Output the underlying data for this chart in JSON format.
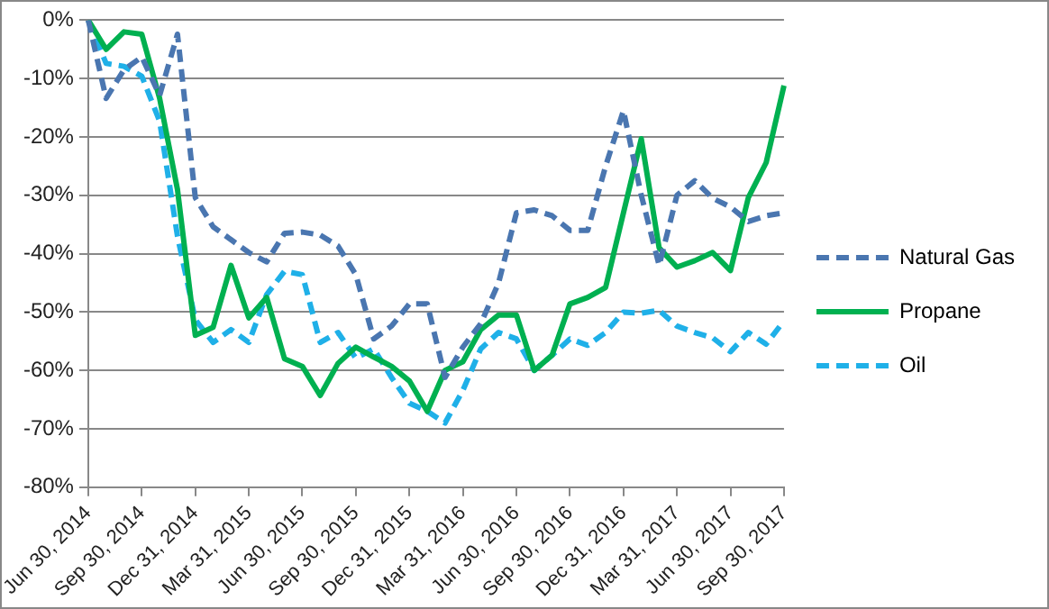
{
  "chart_data": {
    "type": "line",
    "categories": [
      "Jun 30, 2014",
      null,
      null,
      "Sep 30, 2014",
      null,
      null,
      "Dec 31, 2014",
      null,
      null,
      "Mar 31, 2015",
      null,
      null,
      "Jun 30, 2015",
      null,
      null,
      "Sep 30, 2015",
      null,
      null,
      "Dec 31, 2015",
      null,
      null,
      "Mar 31, 2016",
      null,
      null,
      "Jun 30, 2016",
      null,
      null,
      "Sep 30, 2016",
      null,
      null,
      "Dec 31, 2016",
      null,
      null,
      "Mar 31, 2017",
      null,
      null,
      "Jun 30, 2017",
      null,
      null,
      "Sep 30, 2017"
    ],
    "series": [
      {
        "name": "Natural Gas",
        "color": "#4a76b0",
        "line_style": "dashed",
        "values": [
          0,
          -13.4,
          -8.5,
          -6.3,
          -12.9,
          -2.4,
          -30.4,
          -35.4,
          -37.6,
          -39.8,
          -41.4,
          -36.5,
          -36.3,
          -36.8,
          -38.7,
          -43.6,
          -54.6,
          -52.4,
          -48.6,
          -48.6,
          -61.2,
          -56,
          -52,
          -45,
          -33,
          -32.5,
          -33.5,
          -36,
          -36,
          -25,
          -15.5,
          -30,
          -42,
          -30,
          -27.5,
          -30.5,
          -32,
          -34.5,
          -33.5,
          -33
        ]
      },
      {
        "name": "Propane",
        "color": "#00b050",
        "line_style": "solid",
        "values": [
          0,
          -5,
          -2,
          -2.4,
          -13.4,
          -29,
          -54,
          -52.6,
          -42,
          -51,
          -47.5,
          -58,
          -59.3,
          -64.3,
          -58.8,
          -56,
          -57.7,
          -59.3,
          -61.8,
          -67,
          -60,
          -58.5,
          -53,
          -50.5,
          -50.5,
          -60,
          -57.4,
          -48.6,
          -47.5,
          -45.8,
          -33,
          -20.3,
          -39,
          -42.3,
          -41.2,
          -39.8,
          -42.9,
          -30.4,
          -24.4,
          -11.2
        ]
      },
      {
        "name": "Oil",
        "color": "#1fb0e8",
        "line_style": "dashed",
        "values": [
          0,
          -7.4,
          -7.9,
          -9.6,
          -17.3,
          -37,
          -51.3,
          -55.2,
          -53,
          -55.2,
          -47,
          -43,
          -43.6,
          -55.2,
          -53.5,
          -57.9,
          -56.3,
          -61.2,
          -65.6,
          -67,
          -69,
          -63.4,
          -56.3,
          -53.5,
          -54.6,
          -60,
          -57.4,
          -54.6,
          -55.7,
          -53.5,
          -50,
          -50.2,
          -49.7,
          -52.4,
          -53.5,
          -54.4,
          -56.8,
          -53.5,
          -55.5,
          -51.5
        ]
      }
    ],
    "ylim": [
      -80,
      0
    ],
    "yticks": [
      {
        "value": 0,
        "label": "0%"
      },
      {
        "value": -10,
        "label": "-10%"
      },
      {
        "value": -20,
        "label": "-20%"
      },
      {
        "value": -30,
        "label": "-30%"
      },
      {
        "value": -40,
        "label": "-40%"
      },
      {
        "value": -50,
        "label": "-50%"
      },
      {
        "value": -60,
        "label": "-60%"
      },
      {
        "value": -70,
        "label": "-70%"
      },
      {
        "value": -80,
        "label": "-80%"
      }
    ],
    "grid": "y",
    "legend": "right",
    "marker": "none"
  }
}
